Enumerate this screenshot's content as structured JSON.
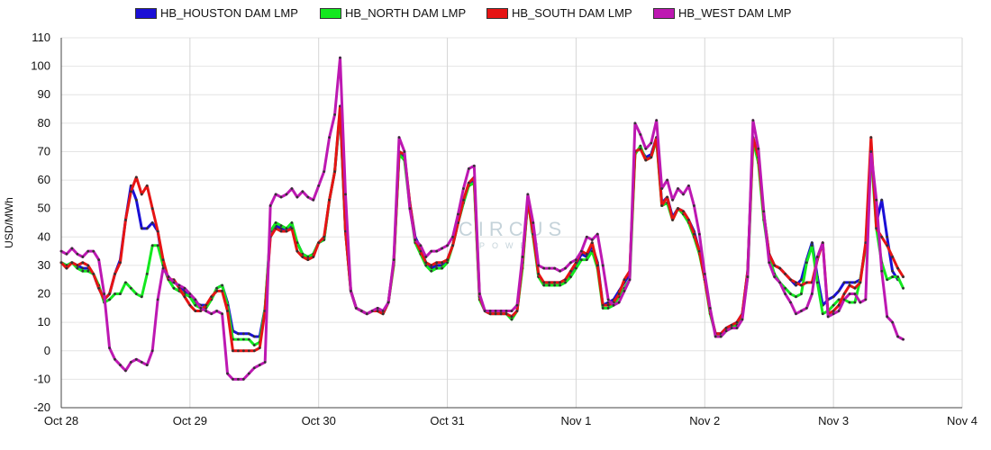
{
  "chart_data": {
    "type": "line",
    "title": "",
    "xlabel": "",
    "ylabel": "USD/MWh",
    "ylim": [
      -20,
      110
    ],
    "yticks": [
      -20,
      -10,
      0,
      10,
      20,
      30,
      40,
      50,
      60,
      70,
      80,
      90,
      100,
      110
    ],
    "xlim": [
      0,
      168
    ],
    "x_tick_labels": [
      {
        "label": "Oct 28",
        "hour": 0
      },
      {
        "label": "Oct 29",
        "hour": 24
      },
      {
        "label": "Oct 30",
        "hour": 48
      },
      {
        "label": "Oct 31",
        "hour": 72
      },
      {
        "label": "Nov 1",
        "hour": 96
      },
      {
        "label": "Nov 2",
        "hour": 120
      },
      {
        "label": "Nov 3",
        "hour": 144
      },
      {
        "label": "Nov 4",
        "hour": 168
      }
    ],
    "grid": true,
    "legend_position": "top-center",
    "watermark": {
      "title": "CIRCUS",
      "subtitle": "POWER"
    },
    "series": [
      {
        "name": "HB_HOUSTON DAM LMP",
        "color": "#1a0fd6",
        "values": [
          31,
          30,
          31,
          30,
          29,
          29,
          27,
          22,
          18,
          20,
          27,
          32,
          46,
          58,
          53,
          43,
          43,
          45,
          42,
          30,
          25,
          24,
          23,
          21,
          19,
          17,
          16,
          16,
          18,
          22,
          23,
          17,
          7,
          6,
          6,
          6,
          5,
          5,
          15,
          41,
          44,
          43,
          42,
          44,
          38,
          34,
          33,
          34,
          38,
          39,
          53,
          63,
          84,
          42,
          21,
          15,
          14,
          13,
          14,
          14,
          13,
          17,
          31,
          69,
          68,
          52,
          40,
          36,
          31,
          29,
          30,
          30,
          32,
          37,
          45,
          52,
          59,
          60,
          19,
          14,
          13,
          13,
          13,
          13,
          12,
          14,
          30,
          53,
          42,
          26,
          24,
          24,
          24,
          24,
          25,
          27,
          30,
          34,
          33,
          37,
          31,
          16,
          17,
          18,
          21,
          24,
          27,
          70,
          71,
          68,
          69,
          75,
          52,
          54,
          47,
          50,
          49,
          46,
          42,
          35,
          25,
          14,
          6,
          6,
          8,
          9,
          10,
          13,
          28,
          75,
          68,
          48,
          34,
          30,
          29,
          27,
          25,
          23,
          25,
          32,
          38,
          26,
          16,
          18,
          19,
          21,
          24,
          24,
          24,
          25,
          37,
          71,
          45,
          53,
          40,
          28,
          25
        ]
      },
      {
        "name": "HB_NORTH DAM LMP",
        "color": "#13e81f",
        "values": [
          31,
          30,
          31,
          29,
          28,
          28,
          27,
          23,
          17,
          18,
          20,
          20,
          24,
          22,
          20,
          19,
          27,
          37,
          37,
          30,
          25,
          22,
          21,
          20,
          19,
          16,
          15,
          15,
          18,
          22,
          23,
          16,
          4,
          4,
          4,
          4,
          2,
          3,
          15,
          42,
          45,
          44,
          43,
          45,
          38,
          34,
          33,
          34,
          38,
          39,
          53,
          63,
          85,
          42,
          21,
          15,
          14,
          13,
          14,
          14,
          13,
          17,
          30,
          69,
          67,
          51,
          38,
          34,
          30,
          28,
          29,
          29,
          31,
          37,
          45,
          52,
          58,
          59,
          18,
          14,
          13,
          13,
          13,
          13,
          11,
          14,
          29,
          53,
          40,
          26,
          23,
          23,
          23,
          23,
          24,
          26,
          29,
          32,
          32,
          35,
          29,
          15,
          15,
          16,
          19,
          22,
          25,
          69,
          72,
          67,
          68,
          74,
          51,
          52,
          46,
          50,
          48,
          45,
          40,
          34,
          25,
          13,
          6,
          5,
          7,
          8,
          9,
          12,
          26,
          74,
          66,
          46,
          33,
          27,
          24,
          22,
          20,
          19,
          20,
          31,
          37,
          24,
          13,
          14,
          16,
          18,
          18,
          17,
          17,
          25,
          36,
          70,
          43,
          31,
          25,
          26,
          26,
          22
        ]
      },
      {
        "name": "HB_SOUTH DAM LMP",
        "color": "#e61414",
        "values": [
          31,
          29,
          31,
          30,
          31,
          30,
          27,
          22,
          18,
          20,
          27,
          31,
          46,
          56,
          61,
          55,
          58,
          50,
          42,
          32,
          25,
          25,
          22,
          19,
          16,
          14,
          14,
          16,
          19,
          21,
          21,
          14,
          0,
          0,
          0,
          0,
          0,
          1,
          14,
          40,
          43,
          42,
          42,
          43,
          35,
          33,
          32,
          33,
          38,
          40,
          53,
          63,
          86,
          42,
          21,
          15,
          14,
          13,
          14,
          14,
          13,
          17,
          31,
          70,
          69,
          52,
          39,
          35,
          31,
          30,
          31,
          31,
          32,
          37,
          45,
          53,
          59,
          61,
          19,
          14,
          13,
          13,
          13,
          13,
          12,
          14,
          31,
          53,
          41,
          27,
          24,
          24,
          24,
          24,
          25,
          28,
          31,
          35,
          34,
          38,
          30,
          16,
          16,
          17,
          20,
          25,
          28,
          70,
          71,
          67,
          68,
          75,
          51,
          54,
          46,
          50,
          49,
          46,
          41,
          35,
          25,
          14,
          6,
          6,
          8,
          9,
          10,
          13,
          28,
          75,
          68,
          48,
          34,
          30,
          29,
          27,
          25,
          24,
          23,
          24,
          24,
          32,
          38,
          13,
          14,
          16,
          20,
          23,
          22,
          24,
          38,
          75,
          43,
          40,
          37,
          33,
          29,
          26
        ]
      },
      {
        "name": "HB_WEST DAM LMP",
        "color": "#bd18b2",
        "values": [
          35,
          34,
          36,
          34,
          33,
          35,
          35,
          32,
          20,
          1,
          -3,
          -5,
          -7,
          -4,
          -3,
          -4,
          -5,
          0,
          18,
          29,
          26,
          24,
          23,
          22,
          20,
          18,
          15,
          14,
          13,
          14,
          13,
          -8,
          -10,
          -10,
          -10,
          -8,
          -6,
          -5,
          -4,
          51,
          55,
          54,
          55,
          57,
          54,
          56,
          54,
          53,
          58,
          63,
          75,
          83,
          103,
          55,
          21,
          15,
          14,
          13,
          14,
          15,
          14,
          17,
          32,
          75,
          70,
          50,
          39,
          37,
          33,
          35,
          35,
          36,
          37,
          40,
          48,
          57,
          64,
          65,
          20,
          14,
          14,
          14,
          14,
          14,
          14,
          16,
          33,
          55,
          45,
          30,
          29,
          29,
          29,
          28,
          29,
          31,
          32,
          35,
          40,
          39,
          41,
          30,
          18,
          16,
          17,
          21,
          25,
          80,
          76,
          71,
          73,
          81,
          57,
          60,
          53,
          57,
          55,
          58,
          51,
          41,
          27,
          15,
          5,
          5,
          7,
          8,
          8,
          11,
          26,
          81,
          71,
          49,
          31,
          26,
          24,
          20,
          17,
          13,
          14,
          15,
          20,
          33,
          38,
          12,
          13,
          14,
          18,
          20,
          20,
          17,
          18,
          70,
          53,
          28,
          12,
          10,
          5,
          4
        ]
      }
    ]
  }
}
